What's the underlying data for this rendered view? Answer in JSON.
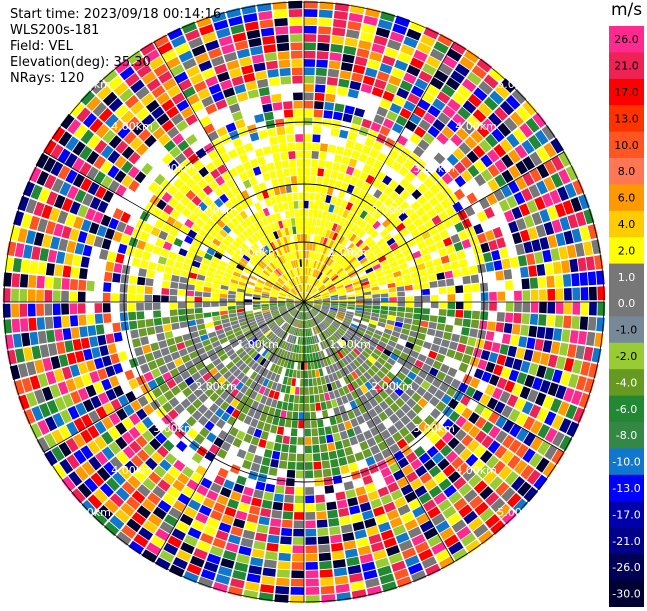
{
  "header": {
    "start_time": "Start time: 2023/09/18 00:14:16",
    "instrument": "WLS200s-181",
    "field": "Field: VEL",
    "elevation": "Elevation(deg): 35.30",
    "nrays": "NRays: 120"
  },
  "colorbar": {
    "unit": "m/s",
    "labels": [
      "26.0",
      "21.0",
      "17.0",
      "13.0",
      "10.0",
      "8.0",
      "6.0",
      "4.0",
      "2.0",
      "1.0",
      "0.0",
      "-1.0",
      "-2.0",
      "-4.0",
      "-6.0",
      "-8.0",
      "-10.0",
      "-13.0",
      "-17.0",
      "-21.0",
      "-26.0",
      "-30.0"
    ],
    "colors": [
      "#ff2a90",
      "#ee2255",
      "#ff0000",
      "#ff3300",
      "#ff5522",
      "#ff7755",
      "#ff9900",
      "#ffcc00",
      "#ffff00",
      "#777777",
      "#777777",
      "#778899",
      "#99cc33",
      "#669922",
      "#228833",
      "#338844",
      "#1177cc",
      "#0000ff",
      "#0000aa",
      "#000088",
      "#000055",
      "#000033"
    ]
  },
  "plot": {
    "range_labels": [
      "1.00km",
      "2.00km",
      "3.00km",
      "4.00km",
      "5.00km"
    ],
    "rays": 120,
    "palette": {
      "yellow": "#ffff00",
      "orange": "#ffaa00",
      "gray": "#777a80",
      "olive": "#6b9a2a",
      "green": "#2e8b2e",
      "noise": [
        "#ff2a90",
        "#ee2255",
        "#ff0000",
        "#ff5522",
        "#ff9900",
        "#ffcc00",
        "#ffff00",
        "#99cc33",
        "#228833",
        "#0000ff",
        "#000088",
        "#1177cc",
        "#777777",
        "#000033"
      ]
    }
  }
}
